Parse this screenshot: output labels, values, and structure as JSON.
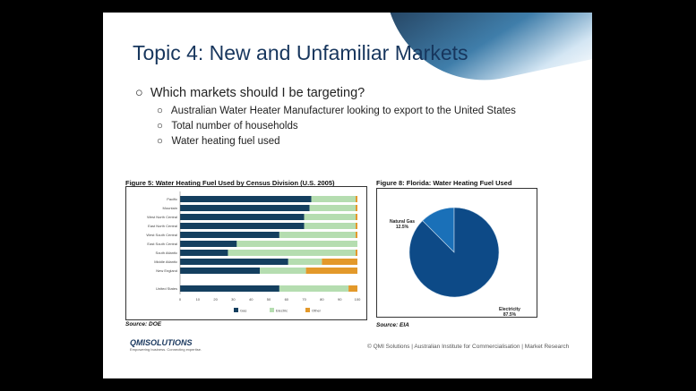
{
  "title": "Topic 4: New and Unfamiliar Markets",
  "bullets": {
    "main": "Which markets should I be targeting?",
    "sub": [
      "Australian Water Heater Manufacturer looking to export to the United States",
      "Total number of households",
      "Water heating fuel used"
    ]
  },
  "colors": {
    "gas": "#143f5f",
    "electric": "#b5ddb0",
    "other": "#e3992a",
    "pie_elec": "#0d4a87",
    "pie_gas": "#1a70b8"
  },
  "chart_data": [
    {
      "type": "bar",
      "stacked": true,
      "orientation": "horizontal",
      "title": "Figure 5: Water Heating Fuel Used by Census Division (U.S. 2005)",
      "categories": [
        "Pacific",
        "Mountain",
        "West North Central",
        "East North Central",
        "West South Central",
        "East South Central",
        "South Atlantic",
        "Middle Atlantic",
        "New England",
        "United States"
      ],
      "series": [
        {
          "name": "Gas",
          "values": [
            74,
            73,
            70,
            70,
            56,
            32,
            27,
            61,
            45,
            56
          ]
        },
        {
          "name": "Electric",
          "values": [
            25,
            26,
            29,
            29,
            43,
            68,
            72,
            19,
            26,
            39
          ]
        },
        {
          "name": "Other",
          "values": [
            1,
            1,
            1,
            1,
            1,
            0,
            1,
            20,
            29,
            5
          ]
        }
      ],
      "xlim": [
        0,
        100
      ],
      "xticks": [
        "0",
        "10",
        "20",
        "30",
        "40",
        "50",
        "60",
        "70",
        "80",
        "90",
        "100"
      ],
      "legend": "bottom",
      "source": "Source: DOE"
    },
    {
      "type": "pie",
      "title": "Figure 8: Florida: Water Heating Fuel Used",
      "slices": [
        {
          "name": "Natural Gas",
          "value": 12.5,
          "label": "12.5%"
        },
        {
          "name": "Electricity",
          "value": 87.5,
          "label": "87.5%"
        }
      ],
      "source": "Source: EIA"
    }
  ],
  "footer": {
    "logo": "QMISOLUTIONS",
    "tagline": "Empowering business. Connecting expertise.",
    "text": "© QMI Solutions  |  Australian Institute for Commercialisation  |  Market Research"
  }
}
